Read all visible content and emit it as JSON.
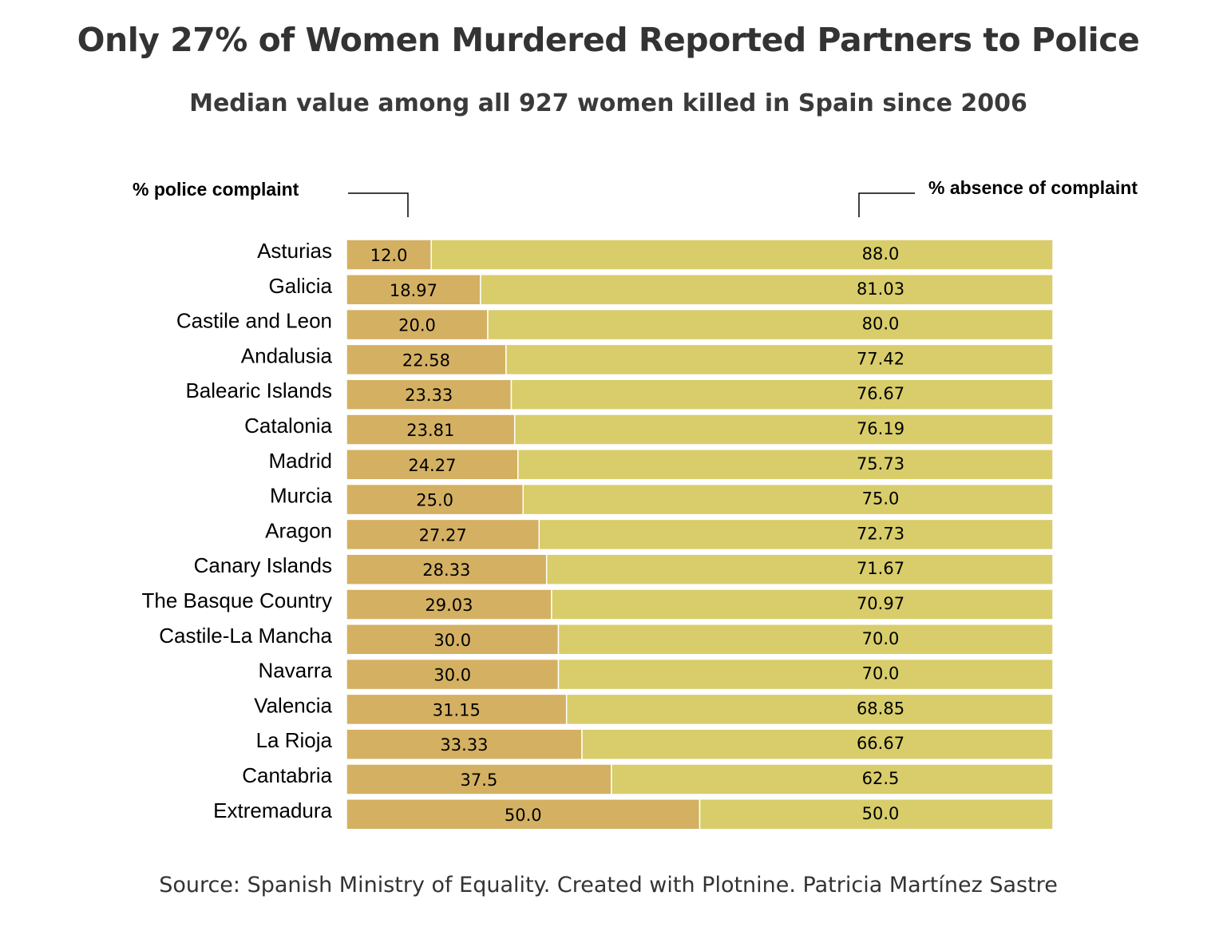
{
  "chart_data": {
    "type": "bar",
    "orientation": "horizontal",
    "stacked": true,
    "title": "Only 27% of Women Murdered Reported Partners to Police",
    "subtitle": "Median value among all 927 women killed in Spain since 2006",
    "caption": "Source: Spanish Ministry of Equality. Created with Plotnine. Patricia Martínez Sastre",
    "legend": {
      "left_label": "% police complaint",
      "right_label": "% absence of complaint",
      "placement": "top"
    },
    "xlim": [
      0,
      100
    ],
    "grid": false,
    "categories": [
      "Asturias",
      "Galicia",
      "Castile and Leon",
      "Andalusia",
      "Balearic Islands",
      "Catalonia",
      "Madrid",
      "Murcia",
      "Aragon",
      "Canary Islands",
      "The Basque Country",
      "Castile-La Mancha",
      "Navarra",
      "Valencia",
      "La Rioja",
      "Cantabria",
      "Extremadura"
    ],
    "series": [
      {
        "name": "% police complaint",
        "color": "#d4b062",
        "values": [
          12.0,
          18.97,
          20.0,
          22.58,
          23.33,
          23.81,
          24.27,
          25.0,
          27.27,
          28.33,
          29.03,
          30.0,
          30.0,
          31.15,
          33.33,
          37.5,
          50.0
        ],
        "labels": [
          "12.0",
          "18.97",
          "20.0",
          "22.58",
          "23.33",
          "23.81",
          "24.27",
          "25.0",
          "27.27",
          "28.33",
          "29.03",
          "30.0",
          "30.0",
          "31.15",
          "33.33",
          "37.5",
          "50.0"
        ]
      },
      {
        "name": "% absence of complaint",
        "color": "#d8cd6a",
        "values": [
          88.0,
          81.03,
          80.0,
          77.42,
          76.67,
          76.19,
          75.73,
          75.0,
          72.73,
          71.67,
          70.97,
          70.0,
          70.0,
          68.85,
          66.67,
          62.5,
          50.0
        ],
        "labels": [
          "88.0",
          "81.03",
          "80.0",
          "77.42",
          "76.67",
          "76.19",
          "75.73",
          "75.0",
          "72.73",
          "71.67",
          "70.97",
          "70.0",
          "70.0",
          "68.85",
          "66.67",
          "62.5",
          "50.0"
        ]
      }
    ]
  }
}
